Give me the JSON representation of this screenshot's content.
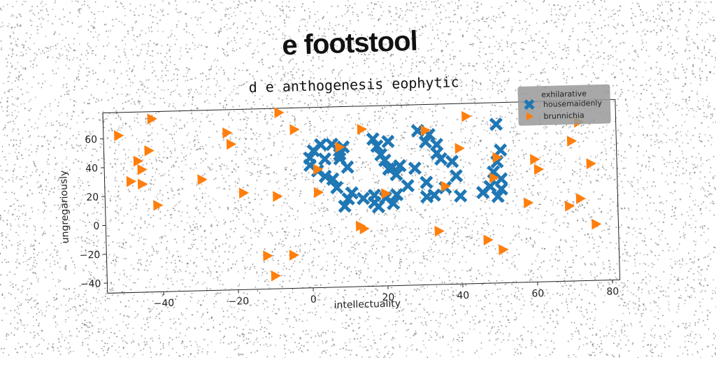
{
  "title": "e footstool",
  "chart_data": {
    "type": "scatter",
    "title": "d e anthogenesis eophytic",
    "xlabel": "intellectuality",
    "ylabel": "ungregariously",
    "xlim": [
      -55,
      82
    ],
    "ylim": [
      -47,
      78
    ],
    "xticks": [
      -40,
      -20,
      0,
      20,
      40,
      60,
      80
    ],
    "yticks": [
      -40,
      -20,
      0,
      20,
      40,
      60
    ],
    "xtick_labels": [
      "−40",
      "−20",
      "0",
      "20",
      "40",
      "60",
      "80"
    ],
    "ytick_labels": [
      "−40",
      "−20",
      "0",
      "20",
      "40",
      "60"
    ],
    "grid": false,
    "legend": {
      "title": "exhilarative",
      "position": "top-right"
    },
    "series": [
      {
        "name": "housemaidenly",
        "color": "#1f77b4",
        "marker": "x",
        "points": [
          [
            0,
            43
          ],
          [
            1,
            48
          ],
          [
            3,
            52
          ],
          [
            6,
            52
          ],
          [
            9,
            50
          ],
          [
            0,
            38
          ],
          [
            4,
            42
          ],
          [
            8,
            45
          ],
          [
            10,
            36
          ],
          [
            2,
            34
          ],
          [
            4,
            30
          ],
          [
            6,
            28
          ],
          [
            7,
            22
          ],
          [
            11,
            18
          ],
          [
            10,
            14
          ],
          [
            9,
            9
          ],
          [
            14,
            14
          ],
          [
            17,
            11
          ],
          [
            17,
            16
          ],
          [
            18,
            8
          ],
          [
            20,
            14
          ],
          [
            22,
            10
          ],
          [
            23,
            16
          ],
          [
            17,
            55
          ],
          [
            18,
            50
          ],
          [
            21,
            53
          ],
          [
            19,
            44
          ],
          [
            20,
            40
          ],
          [
            22,
            35
          ],
          [
            24,
            36
          ],
          [
            21,
            34
          ],
          [
            23,
            30
          ],
          [
            26,
            22
          ],
          [
            28,
            34
          ],
          [
            31,
            24
          ],
          [
            29,
            60
          ],
          [
            32,
            57
          ],
          [
            31,
            52
          ],
          [
            34,
            50
          ],
          [
            34,
            44
          ],
          [
            35,
            40
          ],
          [
            38,
            38
          ],
          [
            39,
            28
          ],
          [
            36,
            20
          ],
          [
            33,
            15
          ],
          [
            31,
            14
          ],
          [
            40,
            14
          ],
          [
            50,
            63
          ],
          [
            51,
            45
          ],
          [
            50,
            37
          ],
          [
            49,
            30
          ],
          [
            51,
            25
          ],
          [
            48,
            20
          ],
          [
            46,
            16
          ],
          [
            50,
            13
          ],
          [
            51,
            18
          ],
          [
            8,
            42
          ]
        ]
      },
      {
        "name": "brunnichia",
        "color": "#ff7f0e",
        "marker": "triangle-right",
        "points": [
          [
            -51,
            62
          ],
          [
            -42,
            73
          ],
          [
            -43,
            51
          ],
          [
            -46,
            44
          ],
          [
            -45,
            38
          ],
          [
            -48,
            30
          ],
          [
            -45,
            28
          ],
          [
            -41,
            13
          ],
          [
            -22,
            62
          ],
          [
            -21,
            54
          ],
          [
            -29,
            30
          ],
          [
            -18,
            20
          ],
          [
            -8,
            75
          ],
          [
            -4,
            63
          ],
          [
            -9,
            17
          ],
          [
            -12,
            -24
          ],
          [
            -5,
            -24
          ],
          [
            -10,
            -38
          ],
          [
            8,
            50
          ],
          [
            2,
            35
          ],
          [
            2,
            19
          ],
          [
            13,
            -5
          ],
          [
            14,
            -7
          ],
          [
            14,
            62
          ],
          [
            20,
            17
          ],
          [
            31,
            60
          ],
          [
            36,
            21
          ],
          [
            34,
            -10
          ],
          [
            42,
            69
          ],
          [
            40,
            47
          ],
          [
            47,
            -17
          ],
          [
            49,
            26
          ],
          [
            50,
            40
          ],
          [
            51,
            -24
          ],
          [
            58,
            8
          ],
          [
            60,
            38
          ],
          [
            61,
            31
          ],
          [
            70,
            50
          ],
          [
            69,
            5
          ],
          [
            72,
            10
          ],
          [
            75,
            34
          ],
          [
            76,
            -8
          ],
          [
            72,
            63
          ]
        ]
      }
    ]
  }
}
